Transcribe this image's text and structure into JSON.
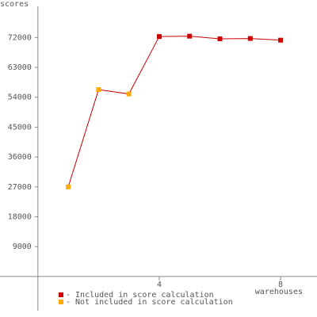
{
  "chart_data": {
    "type": "line",
    "x_label": "warehouses",
    "y_label": "scores",
    "x": [
      1,
      2,
      3,
      4,
      5,
      6,
      7,
      8
    ],
    "values": [
      27000,
      56300,
      55000,
      72300,
      72400,
      71600,
      71700,
      71200
    ],
    "included": [
      false,
      false,
      false,
      true,
      true,
      true,
      true,
      true
    ],
    "line_color": "#cc0000",
    "legend": [
      {
        "label": "- Included in score calculation",
        "color": "#cc0000"
      },
      {
        "label": "- Not included in score calculation",
        "color": "#ffaa00"
      }
    ],
    "xlim": [
      -1.25,
      9.2
    ],
    "xticks": [
      4,
      8
    ],
    "ylim": [
      -12200,
      83300
    ],
    "yticks": [
      9000,
      18000,
      27000,
      36000,
      45000,
      54000,
      63000,
      72000
    ]
  }
}
